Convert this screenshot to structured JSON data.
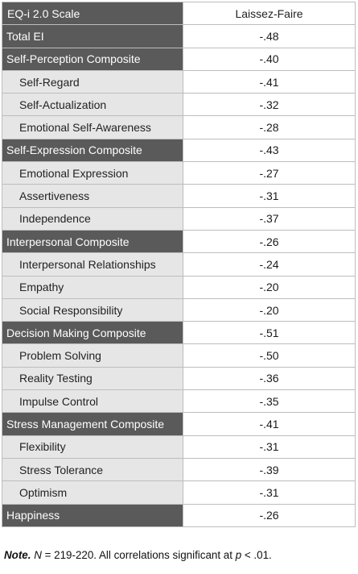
{
  "table": {
    "header": {
      "scale": "EQ-i 2.0 Scale",
      "style": "Laissez-Faire"
    },
    "rows": [
      {
        "label": "Total EI",
        "value": "-.48",
        "kind": "composite"
      },
      {
        "label": "Self-Perception Composite",
        "value": "-.40",
        "kind": "composite"
      },
      {
        "label": "Self-Regard",
        "value": "-.41",
        "kind": "sub"
      },
      {
        "label": "Self-Actualization",
        "value": "-.32",
        "kind": "sub"
      },
      {
        "label": "Emotional Self-Awareness",
        "value": "-.28",
        "kind": "sub"
      },
      {
        "label": "Self-Expression Composite",
        "value": "-.43",
        "kind": "composite"
      },
      {
        "label": "Emotional Expression",
        "value": "-.27",
        "kind": "sub"
      },
      {
        "label": "Assertiveness",
        "value": "-.31",
        "kind": "sub"
      },
      {
        "label": "Independence",
        "value": "-.37",
        "kind": "sub"
      },
      {
        "label": "Interpersonal Composite",
        "value": "-.26",
        "kind": "composite"
      },
      {
        "label": "Interpersonal Relationships",
        "value": "-.24",
        "kind": "sub"
      },
      {
        "label": "Empathy",
        "value": "-.20",
        "kind": "sub"
      },
      {
        "label": "Social Responsibility",
        "value": "-.20",
        "kind": "sub"
      },
      {
        "label": "Decision Making Composite",
        "value": "-.51",
        "kind": "composite"
      },
      {
        "label": "Problem Solving",
        "value": "-.50",
        "kind": "sub"
      },
      {
        "label": "Reality Testing",
        "value": "-.36",
        "kind": "sub"
      },
      {
        "label": "Impulse Control",
        "value": "-.35",
        "kind": "sub"
      },
      {
        "label": "Stress Management Composite",
        "value": "-.41",
        "kind": "composite"
      },
      {
        "label": "Flexibility",
        "value": "-.31",
        "kind": "sub"
      },
      {
        "label": "Stress Tolerance",
        "value": "-.39",
        "kind": "sub"
      },
      {
        "label": "Optimism",
        "value": "-.31",
        "kind": "sub"
      },
      {
        "label": "Happiness",
        "value": "-.26",
        "kind": "composite"
      }
    ]
  },
  "note": {
    "label": "Note.",
    "n_symbol": "N",
    "n_text": " = 219-220. All correlations significant at ",
    "p_symbol": "p",
    "p_text": " < .01."
  }
}
